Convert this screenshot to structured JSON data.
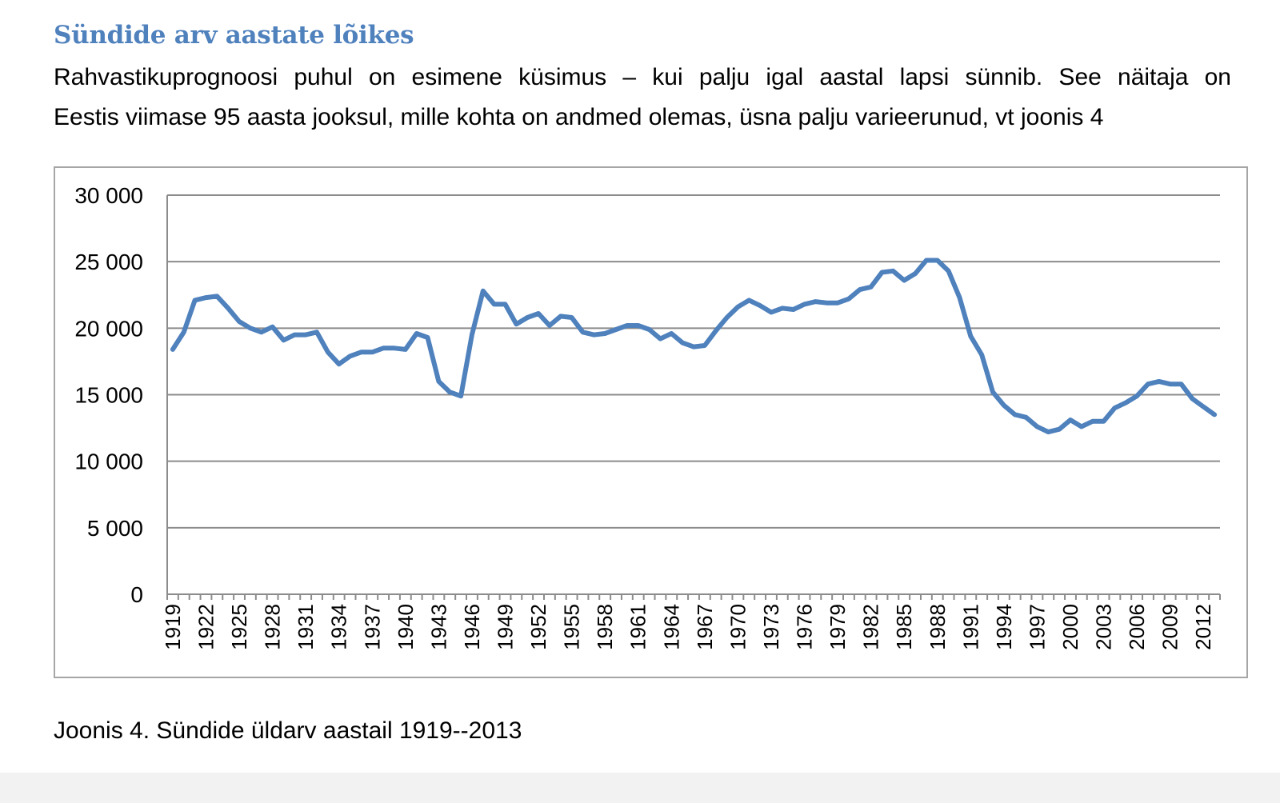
{
  "heading": "Sündide arv aastate lõikes",
  "paragraph": {
    "line1": "Rahvastikuprognoosi puhul on esimene küsimus – kui palju igal aastal lapsi sünnib. See näitaja on",
    "line2": "Eestis viimase 95 aasta jooksul, mille kohta on andmed olemas, üsna palju varieerunud, vt joonis 4"
  },
  "caption": "Joonis 4. Sündide üldarv aastail 1919--2013",
  "colors": {
    "heading": "#4f81bd",
    "line": "#4f81bd",
    "grid": "#8c8c8c",
    "frame": "#a6a6a6"
  },
  "chart_data": {
    "type": "line",
    "title": "",
    "xlabel": "",
    "ylabel": "",
    "ylim": [
      0,
      30000
    ],
    "yticks": [
      0,
      5000,
      10000,
      15000,
      20000,
      25000,
      30000
    ],
    "ytick_labels": [
      "0",
      "5 000",
      "10 000",
      "15 000",
      "20 000",
      "25 000",
      "30 000"
    ],
    "xtick_labels": [
      "1919",
      "1922",
      "1925",
      "1928",
      "1931",
      "1934",
      "1937",
      "1940",
      "1943",
      "1946",
      "1949",
      "1952",
      "1955",
      "1958",
      "1961",
      "1964",
      "1967",
      "1970",
      "1973",
      "1976",
      "1979",
      "1982",
      "1985",
      "1988",
      "1991",
      "1994",
      "1997",
      "2000",
      "2003",
      "2006",
      "2009",
      "2012"
    ],
    "grid": true,
    "legend": "none",
    "x": [
      1919,
      1920,
      1921,
      1922,
      1923,
      1924,
      1925,
      1926,
      1927,
      1928,
      1929,
      1930,
      1931,
      1932,
      1933,
      1934,
      1935,
      1936,
      1937,
      1938,
      1939,
      1940,
      1941,
      1942,
      1943,
      1944,
      1945,
      1946,
      1947,
      1948,
      1949,
      1950,
      1951,
      1952,
      1953,
      1954,
      1955,
      1956,
      1957,
      1958,
      1959,
      1960,
      1961,
      1962,
      1963,
      1964,
      1965,
      1966,
      1967,
      1968,
      1969,
      1970,
      1971,
      1972,
      1973,
      1974,
      1975,
      1976,
      1977,
      1978,
      1979,
      1980,
      1981,
      1982,
      1983,
      1984,
      1985,
      1986,
      1987,
      1988,
      1989,
      1990,
      1991,
      1992,
      1993,
      1994,
      1995,
      1996,
      1997,
      1998,
      1999,
      2000,
      2001,
      2002,
      2003,
      2004,
      2005,
      2006,
      2007,
      2008,
      2009,
      2010,
      2011,
      2012,
      2013
    ],
    "series": [
      {
        "values": [
          18400,
          19700,
          22100,
          22300,
          22400,
          21500,
          20500,
          20000,
          19700,
          20100,
          19100,
          19500,
          19500,
          19700,
          18200,
          17300,
          17900,
          18200,
          18200,
          18500,
          18500,
          18400,
          19600,
          19300,
          16000,
          15200,
          14900,
          19500,
          22800,
          21800,
          21800,
          20300,
          20800,
          21100,
          20200,
          20900,
          20800,
          19700,
          19500,
          19600,
          19900,
          20200,
          20200,
          19900,
          19200,
          19600,
          18900,
          18600,
          18700,
          19800,
          20800,
          21600,
          22100,
          21700,
          21200,
          21500,
          21400,
          21800,
          22000,
          21900,
          21900,
          22200,
          22900,
          23100,
          24200,
          24300,
          23600,
          24100,
          25100,
          25100,
          24300,
          22300,
          19400,
          18000,
          15200,
          14200,
          13500,
          13300,
          12600,
          12200,
          12400,
          13100,
          12600,
          13000,
          13000,
          14000,
          14400,
          14900,
          15800,
          16000,
          15800,
          15800,
          14700,
          14100,
          13500
        ]
      }
    ]
  }
}
